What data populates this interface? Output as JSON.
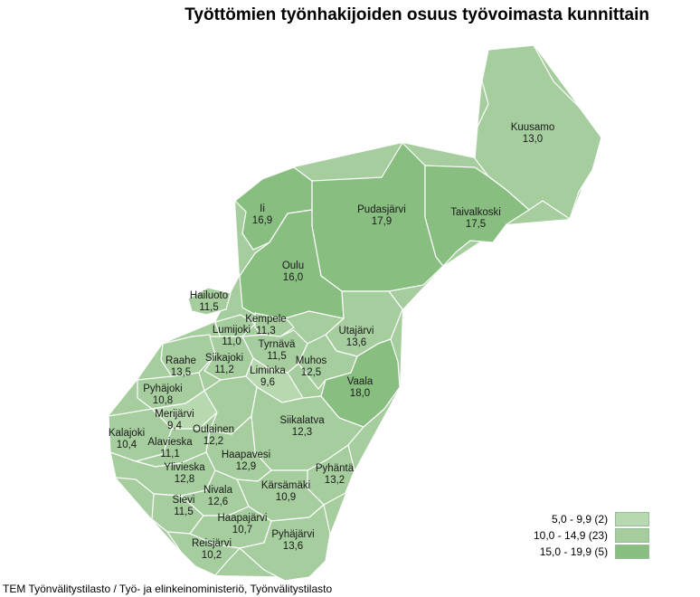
{
  "title": "Työttömien työnhakijoiden osuus työvoimasta kunnittain",
  "source": "TEM Työnvälitystilasto / Työ- ja elinkeinoministeriö, Työnvälitystilasto",
  "colors": {
    "low": "#b8d8b0",
    "mid": "#a6cd9e",
    "high": "#88be80",
    "water": "#cfe6cc"
  },
  "legend": [
    {
      "label": "5,0 - 9,9 (2)",
      "class": "low"
    },
    {
      "label": "10,0 - 14,9 (23)",
      "class": "mid"
    },
    {
      "label": "15,0 - 19,9 (5)",
      "class": "high"
    }
  ],
  "municipalities": [
    {
      "name": "Kuusamo",
      "value": "13,0",
      "class": "mid"
    },
    {
      "name": "Ii",
      "value": "16,9",
      "class": "high"
    },
    {
      "name": "Pudasjärvi",
      "value": "17,9",
      "class": "high"
    },
    {
      "name": "Taivalkoski",
      "value": "17,5",
      "class": "high"
    },
    {
      "name": "Oulu",
      "value": "16,0",
      "class": "high"
    },
    {
      "name": "Hailuoto",
      "value": "11,5",
      "class": "mid"
    },
    {
      "name": "Kempele",
      "value": "11,3",
      "class": "mid"
    },
    {
      "name": "Utajärvi",
      "value": "13,6",
      "class": "mid"
    },
    {
      "name": "Lumijoki",
      "value": "11,0",
      "class": "mid"
    },
    {
      "name": "Tyrnävä",
      "value": "11,5",
      "class": "mid"
    },
    {
      "name": "Raahe",
      "value": "13,5",
      "class": "mid"
    },
    {
      "name": "Siikajoki",
      "value": "11,2",
      "class": "mid"
    },
    {
      "name": "Liminka",
      "value": "9,6",
      "class": "low"
    },
    {
      "name": "Muhos",
      "value": "12,5",
      "class": "mid"
    },
    {
      "name": "Vaala",
      "value": "18,0",
      "class": "high"
    },
    {
      "name": "Pyhäjoki",
      "value": "10,8",
      "class": "mid"
    },
    {
      "name": "Merijärvi",
      "value": "9,4",
      "class": "low"
    },
    {
      "name": "Kalajoki",
      "value": "10,4",
      "class": "mid"
    },
    {
      "name": "Oulainen",
      "value": "12,2",
      "class": "mid"
    },
    {
      "name": "Alavieska",
      "value": "11,1",
      "class": "mid"
    },
    {
      "name": "Siikalatva",
      "value": "12,3",
      "class": "mid"
    },
    {
      "name": "Haapavesi",
      "value": "12,9",
      "class": "mid"
    },
    {
      "name": "Ylivieska",
      "value": "12,8",
      "class": "mid"
    },
    {
      "name": "Pyhäntä",
      "value": "13,2",
      "class": "mid"
    },
    {
      "name": "Kärsämäki",
      "value": "10,9",
      "class": "mid"
    },
    {
      "name": "Nivala",
      "value": "12,6",
      "class": "mid"
    },
    {
      "name": "Sievi",
      "value": "11,5",
      "class": "mid"
    },
    {
      "name": "Haapajärvi",
      "value": "10,7",
      "class": "mid"
    },
    {
      "name": "Reisjärvi",
      "value": "10,2",
      "class": "mid"
    },
    {
      "name": "Pyhäjärvi",
      "value": "13,6",
      "class": "mid"
    }
  ]
}
